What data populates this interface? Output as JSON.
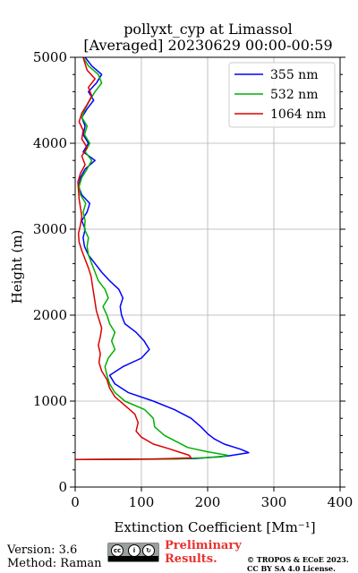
{
  "header": {
    "title_line1": "pollyxt_cyp at Limassol",
    "title_line2": "[Averaged] 20230629 00:00-00:59"
  },
  "footer": {
    "version": "Version: 3.6",
    "method": "Method: Raman",
    "preliminary_line1": "Preliminary",
    "preliminary_line2": "Results.",
    "copyright_line1": "© TROPOS & ECoE 2023.",
    "copyright_line2": "CC BY SA 4.0 License.",
    "license_badge_icons": [
      "cc-icon",
      "by-icon",
      "sa-icon"
    ]
  },
  "chart_data": {
    "type": "line",
    "xlabel": "Extinction Coefficient [Mm⁻¹]",
    "ylabel": "Height (m)",
    "xlim": [
      0,
      400
    ],
    "ylim": [
      0,
      5000
    ],
    "xticks": [
      0,
      100,
      200,
      300,
      400
    ],
    "yticks": [
      0,
      1000,
      2000,
      3000,
      4000,
      5000
    ],
    "grid": true,
    "legend_position": "top-right",
    "series": [
      {
        "name": "355 nm",
        "color": "#0000ff",
        "points": [
          [
            0,
            320
          ],
          [
            180,
            330
          ],
          [
            230,
            360
          ],
          [
            262,
            400
          ],
          [
            250,
            440
          ],
          [
            225,
            500
          ],
          [
            210,
            560
          ],
          [
            200,
            620
          ],
          [
            190,
            700
          ],
          [
            175,
            800
          ],
          [
            150,
            900
          ],
          [
            118,
            1000
          ],
          [
            80,
            1100
          ],
          [
            60,
            1200
          ],
          [
            52,
            1300
          ],
          [
            72,
            1400
          ],
          [
            100,
            1500
          ],
          [
            112,
            1600
          ],
          [
            104,
            1700
          ],
          [
            92,
            1800
          ],
          [
            75,
            1900
          ],
          [
            70,
            2000
          ],
          [
            68,
            2100
          ],
          [
            72,
            2200
          ],
          [
            66,
            2300
          ],
          [
            52,
            2400
          ],
          [
            40,
            2500
          ],
          [
            30,
            2600
          ],
          [
            20,
            2700
          ],
          [
            14,
            2800
          ],
          [
            12,
            2900
          ],
          [
            15,
            3000
          ],
          [
            10,
            3100
          ],
          [
            18,
            3200
          ],
          [
            22,
            3300
          ],
          [
            10,
            3400
          ],
          [
            5,
            3500
          ],
          [
            8,
            3600
          ],
          [
            15,
            3700
          ],
          [
            30,
            3800
          ],
          [
            12,
            3900
          ],
          [
            20,
            4000
          ],
          [
            12,
            4100
          ],
          [
            15,
            4200
          ],
          [
            10,
            4300
          ],
          [
            18,
            4400
          ],
          [
            28,
            4500
          ],
          [
            20,
            4600
          ],
          [
            32,
            4700
          ],
          [
            40,
            4800
          ],
          [
            25,
            4900
          ],
          [
            15,
            5000
          ]
        ]
      },
      {
        "name": "532 nm",
        "color": "#00b000",
        "points": [
          [
            0,
            320
          ],
          [
            150,
            325
          ],
          [
            220,
            350
          ],
          [
            230,
            370
          ],
          [
            200,
            410
          ],
          [
            170,
            460
          ],
          [
            155,
            520
          ],
          [
            135,
            600
          ],
          [
            120,
            700
          ],
          [
            118,
            800
          ],
          [
            105,
            900
          ],
          [
            75,
            1000
          ],
          [
            60,
            1100
          ],
          [
            52,
            1200
          ],
          [
            48,
            1300
          ],
          [
            45,
            1400
          ],
          [
            50,
            1500
          ],
          [
            60,
            1600
          ],
          [
            55,
            1700
          ],
          [
            60,
            1800
          ],
          [
            52,
            1900
          ],
          [
            48,
            2000
          ],
          [
            42,
            2100
          ],
          [
            50,
            2200
          ],
          [
            45,
            2300
          ],
          [
            35,
            2400
          ],
          [
            30,
            2500
          ],
          [
            25,
            2600
          ],
          [
            20,
            2700
          ],
          [
            18,
            2800
          ],
          [
            20,
            2900
          ],
          [
            14,
            3000
          ],
          [
            15,
            3100
          ],
          [
            12,
            3200
          ],
          [
            16,
            3300
          ],
          [
            8,
            3400
          ],
          [
            6,
            3500
          ],
          [
            10,
            3600
          ],
          [
            18,
            3700
          ],
          [
            25,
            3800
          ],
          [
            15,
            3900
          ],
          [
            22,
            4000
          ],
          [
            14,
            4100
          ],
          [
            18,
            4200
          ],
          [
            10,
            4300
          ],
          [
            15,
            4400
          ],
          [
            22,
            4500
          ],
          [
            30,
            4600
          ],
          [
            40,
            4700
          ],
          [
            35,
            4800
          ],
          [
            20,
            4900
          ],
          [
            12,
            5000
          ]
        ]
      },
      {
        "name": "1064 nm",
        "color": "#dd0000",
        "points": [
          [
            0,
            320
          ],
          [
            120,
            325
          ],
          [
            175,
            340
          ],
          [
            172,
            370
          ],
          [
            160,
            400
          ],
          [
            140,
            450
          ],
          [
            118,
            500
          ],
          [
            100,
            580
          ],
          [
            92,
            650
          ],
          [
            95,
            750
          ],
          [
            90,
            850
          ],
          [
            75,
            950
          ],
          [
            60,
            1050
          ],
          [
            52,
            1150
          ],
          [
            48,
            1250
          ],
          [
            40,
            1350
          ],
          [
            36,
            1450
          ],
          [
            38,
            1550
          ],
          [
            35,
            1650
          ],
          [
            38,
            1750
          ],
          [
            40,
            1850
          ],
          [
            36,
            1950
          ],
          [
            32,
            2050
          ],
          [
            30,
            2150
          ],
          [
            28,
            2250
          ],
          [
            26,
            2350
          ],
          [
            24,
            2450
          ],
          [
            20,
            2550
          ],
          [
            15,
            2650
          ],
          [
            10,
            2750
          ],
          [
            6,
            2850
          ],
          [
            5,
            2950
          ],
          [
            8,
            3050
          ],
          [
            10,
            3150
          ],
          [
            8,
            3250
          ],
          [
            6,
            3350
          ],
          [
            5,
            3450
          ],
          [
            4,
            3550
          ],
          [
            8,
            3650
          ],
          [
            15,
            3750
          ],
          [
            10,
            3850
          ],
          [
            18,
            3950
          ],
          [
            10,
            4050
          ],
          [
            12,
            4150
          ],
          [
            6,
            4250
          ],
          [
            10,
            4350
          ],
          [
            18,
            4450
          ],
          [
            25,
            4550
          ],
          [
            20,
            4650
          ],
          [
            30,
            4750
          ],
          [
            18,
            4850
          ],
          [
            12,
            5000
          ]
        ]
      }
    ]
  }
}
